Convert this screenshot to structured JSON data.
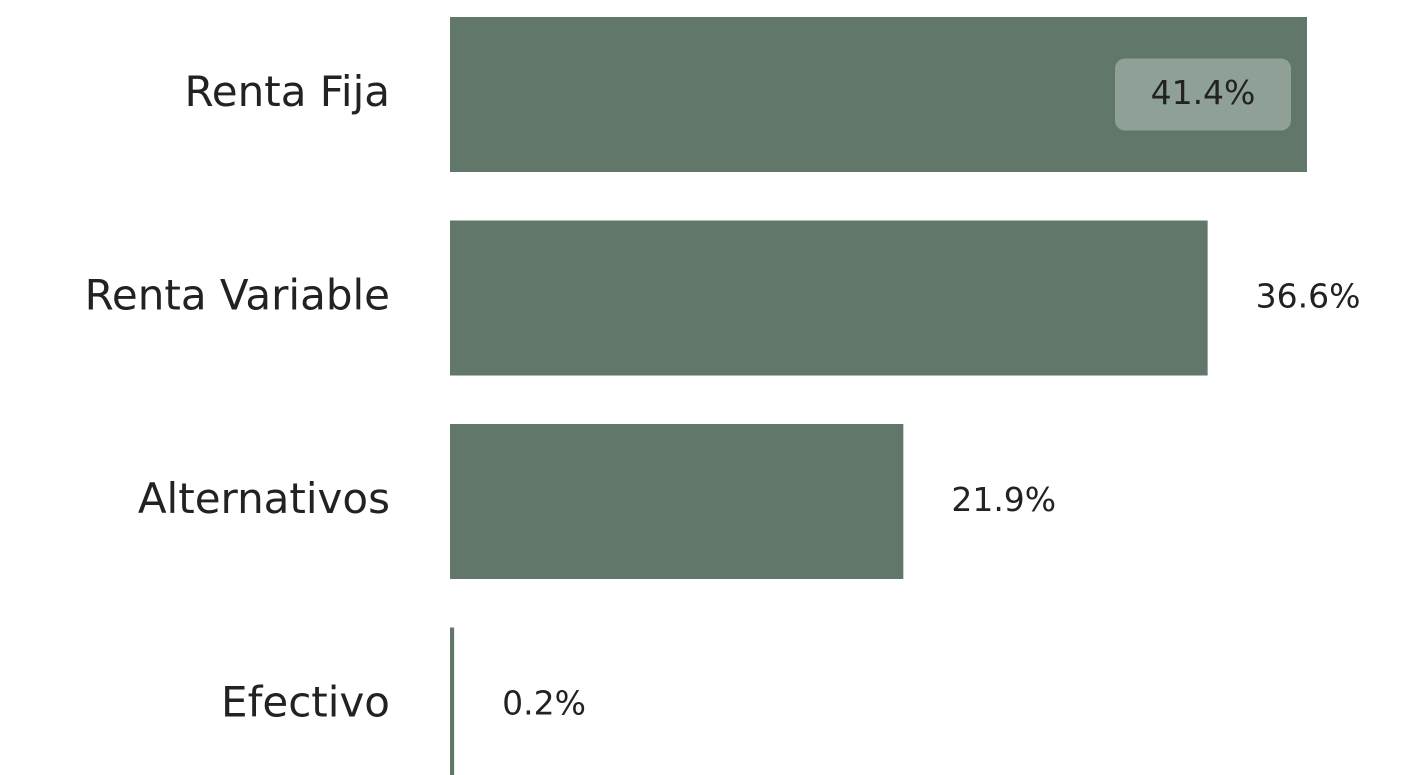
{
  "chart_data": {
    "type": "barh",
    "categories": [
      "Renta Fija",
      "Renta Variable",
      "Alternativos",
      "Efectivo"
    ],
    "values": [
      41.4,
      36.6,
      21.9,
      0.2
    ],
    "value_labels": [
      "41.4%",
      "36.6%",
      "21.9%",
      "0.2%"
    ],
    "color": "#61776a"
  }
}
